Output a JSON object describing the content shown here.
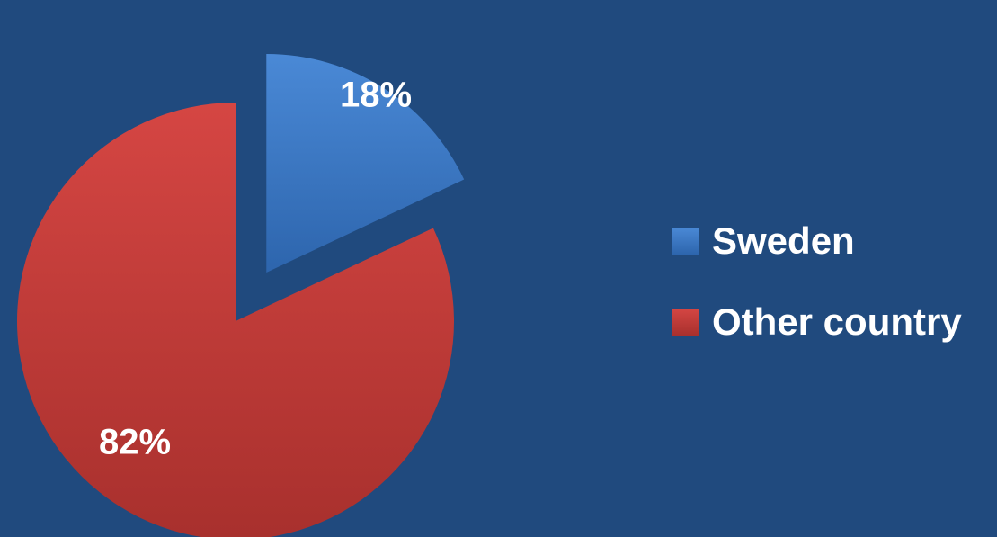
{
  "chart_data": {
    "type": "pie",
    "categories": [
      "Sweden",
      "Other country"
    ],
    "values": [
      18,
      82
    ],
    "data_labels": [
      "18%",
      "82%"
    ],
    "colors": [
      "#3a77c6",
      "#c93a37"
    ],
    "legend_position": "right",
    "exploded_slice": "Sweden"
  },
  "legend": {
    "items": [
      {
        "label": "Sweden",
        "color": "#3a77c6"
      },
      {
        "label": "Other country",
        "color": "#c93a37"
      }
    ]
  },
  "colors": {
    "background": "#204a7e",
    "label_text": "#ffffff"
  }
}
